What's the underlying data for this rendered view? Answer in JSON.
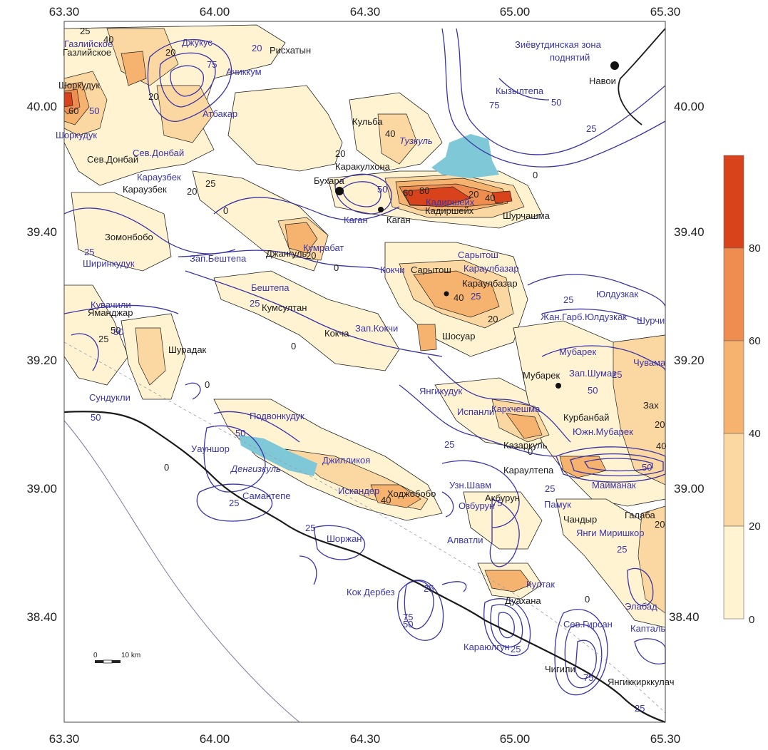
{
  "axes": {
    "x_ticks": [
      "63.30",
      "64.00",
      "64.30",
      "65.00",
      "65.30"
    ],
    "y_ticks_left": [
      "40.00",
      "39.40",
      "39.20",
      "39.00",
      "38.40"
    ],
    "y_ticks_right": [
      "40.00",
      "39.40",
      "39.20",
      "39.00",
      "38.40"
    ]
  },
  "legend": {
    "values": [
      "80",
      "60",
      "40",
      "20",
      "0"
    ],
    "colors": [
      "#d9431c",
      "#ee8d4f",
      "#f6b36f",
      "#fbd7a2",
      "#fff3d1"
    ]
  },
  "scale_bar": {
    "start": "0",
    "end": "10 km"
  },
  "colors": {
    "contour_blue": "#3a34a6",
    "lake": "#7ec8d8",
    "fault": "#1a1a1a"
  },
  "labels": [
    {
      "text": "Газлийское",
      "style": "f"
    },
    {
      "text": "Газлийское",
      "style": "b"
    },
    {
      "text": "Джукус",
      "style": "f"
    },
    {
      "text": "Рисхатын",
      "style": "b"
    },
    {
      "text": "Ачиккум",
      "style": "f"
    },
    {
      "text": "Зиёвутдинская зона",
      "style": "f"
    },
    {
      "text": "поднятий",
      "style": "f"
    },
    {
      "text": "Навои",
      "style": "b"
    },
    {
      "text": "Шоркудук",
      "style": "b"
    },
    {
      "text": "Кызылтепа",
      "style": "f"
    },
    {
      "text": "Атбакар",
      "style": "f"
    },
    {
      "text": "Кульба",
      "style": "b"
    },
    {
      "text": "Шоркудук",
      "style": "f"
    },
    {
      "text": "Тузкуль",
      "style": "fi"
    },
    {
      "text": "Сев.Донбай",
      "style": "b"
    },
    {
      "text": "Сев.Донбай",
      "style": "f"
    },
    {
      "text": "Каракулхона",
      "style": "b"
    },
    {
      "text": "Караузбек",
      "style": "f"
    },
    {
      "text": "Караузбек",
      "style": "b"
    },
    {
      "text": "Бухара",
      "style": "b"
    },
    {
      "text": "Кадиршейх",
      "style": "b"
    },
    {
      "text": "Кадиршейх",
      "style": "f"
    },
    {
      "text": "Шурчашма",
      "style": "b"
    },
    {
      "text": "Каган",
      "style": "f"
    },
    {
      "text": "Каган",
      "style": "b"
    },
    {
      "text": "Зомонбобо",
      "style": "b"
    },
    {
      "text": "Джангуль",
      "style": "b"
    },
    {
      "text": "Кумрабат",
      "style": "f"
    },
    {
      "text": "Зап.Бештепа",
      "style": "f"
    },
    {
      "text": "Сарытош",
      "style": "f"
    },
    {
      "text": "Кокчи",
      "style": "f"
    },
    {
      "text": "Сарытош",
      "style": "b"
    },
    {
      "text": "Караулбазар",
      "style": "f"
    },
    {
      "text": "Ширинкудук",
      "style": "f"
    },
    {
      "text": "Караулбазар",
      "style": "b"
    },
    {
      "text": "Юлдузкак",
      "style": "f"
    },
    {
      "text": "Бештепа",
      "style": "f"
    },
    {
      "text": "Кувачили",
      "style": "f"
    },
    {
      "text": "Кумсултан",
      "style": "b"
    },
    {
      "text": "Жан.Гарб.Юлдузкак",
      "style": "f"
    },
    {
      "text": "Яманджар",
      "style": "b"
    },
    {
      "text": "Шурчи",
      "style": "f"
    },
    {
      "text": "Кокча",
      "style": "b"
    },
    {
      "text": "Зап.Кокчи",
      "style": "f"
    },
    {
      "text": "Шосуар",
      "style": "b"
    },
    {
      "text": "Шурадак",
      "style": "b"
    },
    {
      "text": "Мубарек",
      "style": "f"
    },
    {
      "text": "Чувама",
      "style": "f"
    },
    {
      "text": "Зап.Шумак",
      "style": "f"
    },
    {
      "text": "Мубарек",
      "style": "b"
    },
    {
      "text": "Сундукли",
      "style": "f"
    },
    {
      "text": "Янгикудук",
      "style": "f"
    },
    {
      "text": "Испанли",
      "style": "f"
    },
    {
      "text": "Каркчешма",
      "style": "f"
    },
    {
      "text": "Курбанбай",
      "style": "b"
    },
    {
      "text": "Зах",
      "style": "b"
    },
    {
      "text": "Подвонкудук",
      "style": "f"
    },
    {
      "text": "Южн.Мубарек",
      "style": "f"
    },
    {
      "text": "Казаркуль",
      "style": "b"
    },
    {
      "text": "Уауншор",
      "style": "f"
    },
    {
      "text": "Джилликоя",
      "style": "f"
    },
    {
      "text": "Денгизкуль",
      "style": "fi"
    },
    {
      "text": "Караултепа",
      "style": "b"
    },
    {
      "text": "Майманак",
      "style": "f"
    },
    {
      "text": "Узн.Шавм",
      "style": "f"
    },
    {
      "text": "Самантепе",
      "style": "f"
    },
    {
      "text": "Искандер",
      "style": "f"
    },
    {
      "text": "Ходжобобо",
      "style": "b"
    },
    {
      "text": "Акбурун",
      "style": "b"
    },
    {
      "text": "Памук",
      "style": "f"
    },
    {
      "text": "Озбурун",
      "style": "f"
    },
    {
      "text": "Галаба",
      "style": "b"
    },
    {
      "text": "Чандыр",
      "style": "b"
    },
    {
      "text": "Янги Миришкор",
      "style": "f"
    },
    {
      "text": "Шоржан",
      "style": "f"
    },
    {
      "text": "Алватли",
      "style": "f"
    },
    {
      "text": "Култак",
      "style": "f"
    },
    {
      "text": "Кок Дербез",
      "style": "f"
    },
    {
      "text": "Дуахана",
      "style": "b"
    },
    {
      "text": "Элабад",
      "style": "f"
    },
    {
      "text": "Сев.Гирсан",
      "style": "f"
    },
    {
      "text": "Капталь",
      "style": "f"
    },
    {
      "text": "Караюлгун",
      "style": "f"
    },
    {
      "text": "Чигили",
      "style": "b"
    },
    {
      "text": "Янгиккирккулач",
      "style": "b"
    }
  ],
  "contour_labels": {
    "fill": [
      "25",
      "40",
      "20",
      "60",
      "20",
      "20",
      "40",
      "20",
      "25",
      "20",
      "0",
      "0",
      "0",
      "20",
      "40",
      "60",
      "80",
      "40",
      "20",
      "0",
      "0",
      "25",
      "50",
      "0",
      "40",
      "20",
      "20",
      "40",
      "0",
      "0"
    ],
    "blue": [
      "20",
      "75",
      "50",
      "50",
      "25",
      "25",
      "50",
      "75",
      "25",
      "50",
      "25",
      "25",
      "50",
      "25",
      "50",
      "75",
      "25",
      "25",
      "50",
      "25",
      "25",
      "75",
      "50",
      "25",
      "25",
      "25",
      "75",
      "50",
      "25"
    ]
  }
}
